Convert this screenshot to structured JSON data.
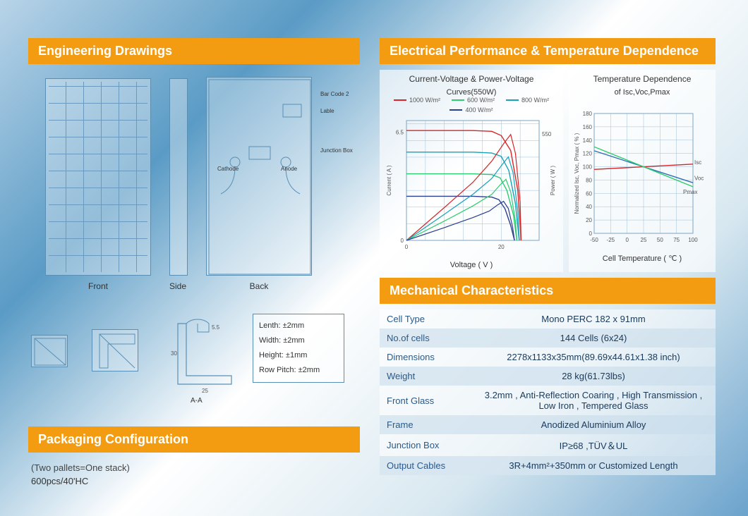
{
  "headers": {
    "eng": "Engineering Drawings",
    "elec": "Electrical Performance & Temperature Dependence",
    "mech": "Mechanical Characteristics",
    "pkg": "Packaging Configuration"
  },
  "drawings": {
    "front_label": "Front",
    "side_label": "Side",
    "back_label": "Back",
    "aa_label": "A-A",
    "back_annotations": [
      "Bar Code 2",
      "Lable",
      "Junction Box",
      "Cathode",
      "Anode"
    ],
    "tolerances": {
      "length": "Lenth: ±2mm",
      "width": "Width: ±2mm",
      "height": "Height: ±1mm",
      "row_pitch": "Row Pitch: ±2mm"
    },
    "profile_dims": {
      "height": "30",
      "base": "25",
      "lip": "5.5"
    }
  },
  "packaging": {
    "subtitle": "(Two pallets=One stack)",
    "line1": "600pcs/40'HC"
  },
  "iv_chart": {
    "title": "Current-Voltage & Power-Voltage",
    "subtitle": "Curves(550W)",
    "x_label": "Voltage ( V )",
    "y_label_left": "Current ( A )",
    "y_label_right": "Power ( W )",
    "x_ticks": [
      0,
      20
    ],
    "y_left_ticks": [
      0,
      6.5
    ],
    "y_right_ticks": [
      550
    ],
    "xlim": [
      0,
      28
    ],
    "ylim_left": [
      0,
      7.2
    ],
    "ylim_right": [
      0,
      620
    ],
    "grid_color": "#9fbfd6",
    "legend": [
      {
        "label": "1000 W/m²",
        "color": "#d62728"
      },
      {
        "label": "600 W/m²",
        "color": "#2ecc71"
      },
      {
        "label": "800 W/m²",
        "color": "#17a2b8"
      },
      {
        "label": "400 W/m²",
        "color": "#2c3e8f"
      }
    ],
    "iv_curves": [
      {
        "color": "#d62728",
        "pts": [
          [
            0,
            6.6
          ],
          [
            14,
            6.6
          ],
          [
            18,
            6.55
          ],
          [
            20,
            6.3
          ],
          [
            22,
            5.4
          ],
          [
            23.5,
            3.0
          ],
          [
            24.2,
            0
          ]
        ]
      },
      {
        "color": "#17a2b8",
        "pts": [
          [
            0,
            5.3
          ],
          [
            14,
            5.3
          ],
          [
            18,
            5.25
          ],
          [
            20,
            5.05
          ],
          [
            21.6,
            4.2
          ],
          [
            23,
            2.2
          ],
          [
            23.8,
            0
          ]
        ]
      },
      {
        "color": "#2ecc71",
        "pts": [
          [
            0,
            4.0
          ],
          [
            14,
            4.0
          ],
          [
            18,
            3.95
          ],
          [
            19.8,
            3.75
          ],
          [
            21.2,
            3.0
          ],
          [
            22.6,
            1.5
          ],
          [
            23.3,
            0
          ]
        ]
      },
      {
        "color": "#2c3e8f",
        "pts": [
          [
            0,
            2.65
          ],
          [
            14,
            2.65
          ],
          [
            18,
            2.6
          ],
          [
            19.5,
            2.45
          ],
          [
            20.8,
            1.9
          ],
          [
            22.0,
            0.9
          ],
          [
            22.8,
            0
          ]
        ]
      }
    ],
    "pv_curves": [
      {
        "color": "#d62728",
        "pts": [
          [
            0,
            0
          ],
          [
            8,
            170
          ],
          [
            14,
            300
          ],
          [
            18,
            410
          ],
          [
            20.5,
            500
          ],
          [
            22,
            548
          ],
          [
            23,
            450
          ],
          [
            24,
            200
          ],
          [
            24.2,
            0
          ]
        ]
      },
      {
        "color": "#17a2b8",
        "pts": [
          [
            0,
            0
          ],
          [
            8,
            135
          ],
          [
            14,
            238
          ],
          [
            18,
            320
          ],
          [
            20.2,
            392
          ],
          [
            21.5,
            432
          ],
          [
            22.5,
            350
          ],
          [
            23.5,
            150
          ],
          [
            23.8,
            0
          ]
        ]
      },
      {
        "color": "#2ecc71",
        "pts": [
          [
            0,
            0
          ],
          [
            8,
            100
          ],
          [
            14,
            178
          ],
          [
            18,
            238
          ],
          [
            19.8,
            288
          ],
          [
            21,
            316
          ],
          [
            22,
            250
          ],
          [
            23,
            100
          ],
          [
            23.3,
            0
          ]
        ]
      },
      {
        "color": "#2c3e8f",
        "pts": [
          [
            0,
            0
          ],
          [
            8,
            66
          ],
          [
            14,
            118
          ],
          [
            17.5,
            152
          ],
          [
            19.2,
            183
          ],
          [
            20.5,
            202
          ],
          [
            21.5,
            165
          ],
          [
            22.4,
            70
          ],
          [
            22.8,
            0
          ]
        ]
      }
    ]
  },
  "temp_chart": {
    "title": "Temperature Dependence",
    "subtitle": "of Isc,Voc,Pmax",
    "x_label": "Cell Temperature ( ℃ )",
    "y_label": "Normalized Isc, Voc, Pmax ( % )",
    "x_ticks": [
      -50,
      -25,
      0,
      25,
      50,
      75,
      100
    ],
    "y_ticks": [
      0,
      20,
      40,
      60,
      80,
      100,
      120,
      140,
      160,
      180
    ],
    "xlim": [
      -50,
      100
    ],
    "ylim": [
      0,
      180
    ],
    "grid_color": "#9fbfd6",
    "series": [
      {
        "name": "Isc",
        "color": "#d62728",
        "pts": [
          [
            -50,
            96
          ],
          [
            25,
            100
          ],
          [
            100,
            104
          ]
        ]
      },
      {
        "name": "Voc",
        "color": "#2c6fb5",
        "pts": [
          [
            -50,
            124
          ],
          [
            25,
            100
          ],
          [
            100,
            76
          ]
        ]
      },
      {
        "name": "Pmax",
        "color": "#2ecc71",
        "pts": [
          [
            -50,
            130
          ],
          [
            25,
            100
          ],
          [
            100,
            70
          ]
        ]
      }
    ],
    "series_labels": {
      "Isc": "Isc",
      "Voc": "Voc",
      "Pmax": "Pmax"
    }
  },
  "mech": [
    {
      "k": "Cell Type",
      "v": "Mono  PERC 182 x 91mm"
    },
    {
      "k": "No.of cells",
      "v": "144 Cells (6x24)"
    },
    {
      "k": "Dimensions",
      "v": "2278x1133x35mm(89.69x44.61x1.38 inch)"
    },
    {
      "k": "Weight",
      "v": "28 kg(61.73lbs)"
    },
    {
      "k": "Front Glass",
      "v": "3.2mm ,  Anti-Reflection Coaring , High Transmission , Low Iron , Tempered Glass"
    },
    {
      "k": "Frame",
      "v": "Anodized Aluminium Alloy"
    },
    {
      "k": "Junction Box",
      "v": "IP≥68 ,TÜV＆UL"
    },
    {
      "k": "Output Cables",
      "v": "3R+4mm²+350mm or Customized Length"
    }
  ],
  "colors": {
    "header_bg": "#f39c12",
    "header_fg": "#ffffff",
    "line_blue": "#5a8fb5"
  }
}
